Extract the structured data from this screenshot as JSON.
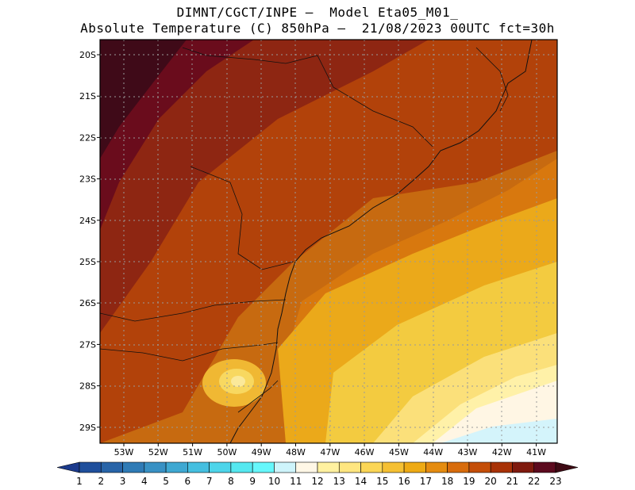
{
  "title_line1": "DIMNT/CGCT/INPE –  Model Eta05_M01_",
  "title_line2": "Absolute Temperature (C) 850hPa –  21/08/2023 00UTC fct=30h",
  "lat_labels": [
    "20S",
    "21S",
    "22S",
    "23S",
    "24S",
    "25S",
    "26S",
    "27S",
    "28S",
    "29S"
  ],
  "lon_labels": [
    "53W",
    "52W",
    "51W",
    "50W",
    "49W",
    "48W",
    "47W",
    "46W",
    "45W",
    "44W",
    "43W",
    "42W",
    "41W"
  ],
  "colorbar": {
    "labels": [
      "1",
      "2",
      "3",
      "4",
      "5",
      "6",
      "7",
      "8",
      "9",
      "10",
      "11",
      "12",
      "13",
      "14",
      "15",
      "16",
      "17",
      "18",
      "19",
      "20",
      "21",
      "22",
      "23"
    ],
    "colors": [
      "#1b3a8c",
      "#1f4f9c",
      "#2864a8",
      "#2f7bb6",
      "#3891c4",
      "#3ea8d2",
      "#45bfe0",
      "#4dd5ea",
      "#55e8f0",
      "#66f7fb",
      "#cef4fb",
      "#fff7e6",
      "#fff1a0",
      "#ffe680",
      "#fbd656",
      "#f5c033",
      "#eeaa14",
      "#e58c10",
      "#d86c0c",
      "#c44e08",
      "#a83206",
      "#7f1a0e",
      "#5c0a1e",
      "#3e0a14"
    ]
  },
  "chart_data": {
    "type": "heatmap",
    "variable": "Absolute Temperature (C) 850hPa",
    "model": "Eta05_M01_",
    "run": "21/08/2023 00UTC",
    "forecast": "fct=30h",
    "lon_range": [
      -53.7,
      -40.4
    ],
    "lat_range": [
      -29.4,
      -19.6
    ],
    "value_range": [
      1,
      23
    ],
    "pattern": "warmest (22-23 C) in the northwest interior, decreasing southeastward to 11-13 C over the ocean in the southeast corner; a local minimum of ~15 C near 50W 28S"
  }
}
